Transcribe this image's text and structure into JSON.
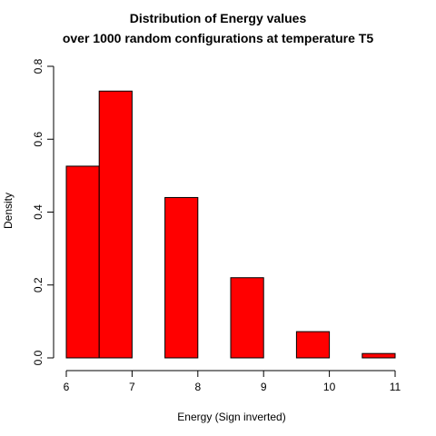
{
  "chart_data": {
    "type": "bar",
    "title": "Distribution of Energy values",
    "subtitle": "over 1000 random configurations at temperature T5",
    "xlabel": "Energy (Sign inverted)",
    "ylabel": "Density",
    "xlim": [
      6,
      11
    ],
    "ylim": [
      0,
      0.8
    ],
    "x_ticks": [
      6,
      7,
      8,
      9,
      10,
      11
    ],
    "y_ticks": [
      0.0,
      0.2,
      0.4,
      0.6,
      0.8
    ],
    "y_tick_labels": [
      "0.0",
      "0.2",
      "0.4",
      "0.6",
      "0.8"
    ],
    "bins": [
      {
        "from": 6.0,
        "to": 6.5,
        "value": 0.526
      },
      {
        "from": 6.5,
        "to": 7.0,
        "value": 0.732
      },
      {
        "from": 7.0,
        "to": 7.5,
        "value": 0.0
      },
      {
        "from": 7.5,
        "to": 8.0,
        "value": 0.44
      },
      {
        "from": 8.0,
        "to": 8.5,
        "value": 0.0
      },
      {
        "from": 8.5,
        "to": 9.0,
        "value": 0.22
      },
      {
        "from": 9.0,
        "to": 9.5,
        "value": 0.0
      },
      {
        "from": 9.5,
        "to": 10.0,
        "value": 0.072
      },
      {
        "from": 10.0,
        "to": 10.5,
        "value": 0.0
      },
      {
        "from": 10.5,
        "to": 11.0,
        "value": 0.012
      }
    ],
    "bar_color": "#ff0000",
    "bar_border_color": "#000000",
    "grid": false,
    "legend": "none"
  }
}
